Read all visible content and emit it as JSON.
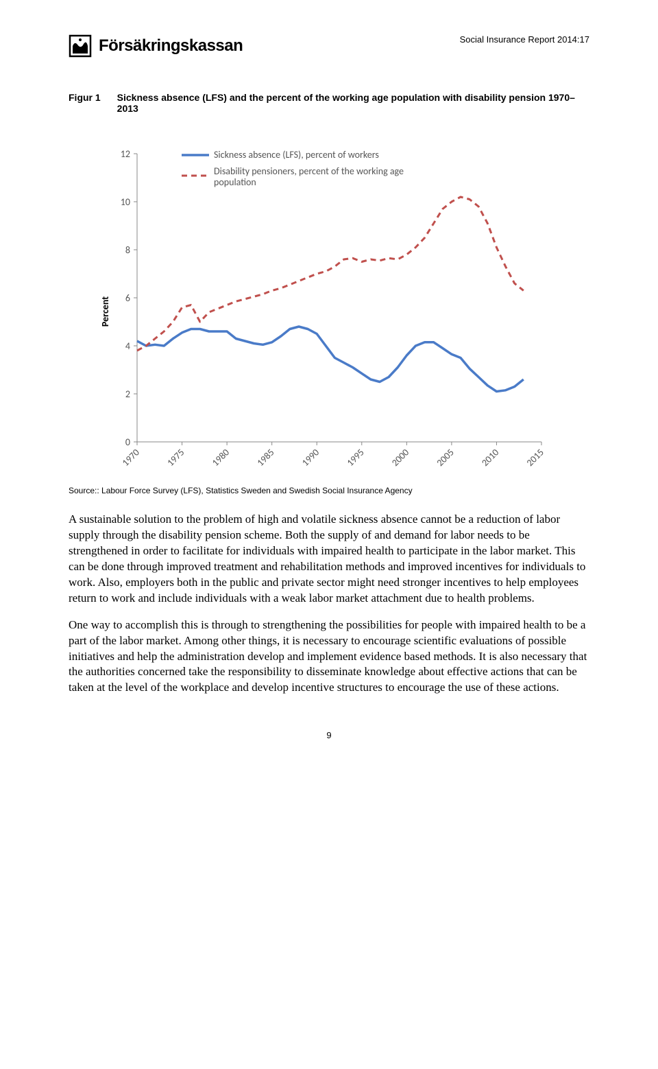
{
  "header": {
    "brand": "Försäkringskassan",
    "report_tag": "Social Insurance Report 2014:17"
  },
  "figure": {
    "label": "Figur 1",
    "title": "Sickness absence (LFS) and the percent of the working age population with disability pension 1970–2013",
    "source": "Source:: Labour Force Survey (LFS), Statistics Sweden and Swedish Social Insurance Agency",
    "chart": {
      "type": "line",
      "ylabel": "Percent",
      "ylim": [
        0,
        12
      ],
      "ytick_step": 2,
      "xlim": [
        1970,
        2015
      ],
      "xtick_step": 5,
      "background_color": "#ffffff",
      "axis_color": "#898989",
      "tick_font_size": 14,
      "label_font_size": 14,
      "legend": [
        {
          "label": "Sickness absence (LFS), percent of workers",
          "color": "#4a7bc8",
          "dash": false,
          "line_width": 3.5
        },
        {
          "label": "Disability pensioners, percent of the working age population",
          "color": "#c0504d",
          "dash": true,
          "line_width": 3
        }
      ],
      "series_sickness": {
        "color": "#4a7bc8",
        "dash": false,
        "points": [
          [
            1970,
            4.2
          ],
          [
            1971,
            4.0
          ],
          [
            1972,
            4.05
          ],
          [
            1973,
            4.0
          ],
          [
            1974,
            4.3
          ],
          [
            1975,
            4.55
          ],
          [
            1976,
            4.7
          ],
          [
            1977,
            4.7
          ],
          [
            1978,
            4.6
          ],
          [
            1979,
            4.6
          ],
          [
            1980,
            4.6
          ],
          [
            1981,
            4.3
          ],
          [
            1982,
            4.2
          ],
          [
            1983,
            4.1
          ],
          [
            1984,
            4.05
          ],
          [
            1985,
            4.15
          ],
          [
            1986,
            4.4
          ],
          [
            1987,
            4.7
          ],
          [
            1988,
            4.8
          ],
          [
            1989,
            4.7
          ],
          [
            1990,
            4.5
          ],
          [
            1991,
            4.0
          ],
          [
            1992,
            3.5
          ],
          [
            1993,
            3.3
          ],
          [
            1994,
            3.1
          ],
          [
            1995,
            2.85
          ],
          [
            1996,
            2.6
          ],
          [
            1997,
            2.5
          ],
          [
            1998,
            2.7
          ],
          [
            1999,
            3.1
          ],
          [
            2000,
            3.6
          ],
          [
            2001,
            4.0
          ],
          [
            2002,
            4.15
          ],
          [
            2003,
            4.15
          ],
          [
            2004,
            3.9
          ],
          [
            2005,
            3.65
          ],
          [
            2006,
            3.5
          ],
          [
            2007,
            3.05
          ],
          [
            2008,
            2.7
          ],
          [
            2009,
            2.35
          ],
          [
            2010,
            2.1
          ],
          [
            2011,
            2.15
          ],
          [
            2012,
            2.3
          ],
          [
            2013,
            2.6
          ]
        ]
      },
      "series_disability": {
        "color": "#c0504d",
        "dash": true,
        "points": [
          [
            1970,
            3.8
          ],
          [
            1971,
            4.0
          ],
          [
            1972,
            4.3
          ],
          [
            1973,
            4.6
          ],
          [
            1974,
            5.0
          ],
          [
            1975,
            5.6
          ],
          [
            1976,
            5.7
          ],
          [
            1977,
            5.0
          ],
          [
            1978,
            5.4
          ],
          [
            1979,
            5.55
          ],
          [
            1980,
            5.7
          ],
          [
            1981,
            5.85
          ],
          [
            1982,
            5.95
          ],
          [
            1983,
            6.05
          ],
          [
            1984,
            6.15
          ],
          [
            1985,
            6.3
          ],
          [
            1986,
            6.4
          ],
          [
            1987,
            6.55
          ],
          [
            1988,
            6.7
          ],
          [
            1989,
            6.85
          ],
          [
            1990,
            7.0
          ],
          [
            1991,
            7.1
          ],
          [
            1992,
            7.3
          ],
          [
            1993,
            7.6
          ],
          [
            1994,
            7.65
          ],
          [
            1995,
            7.5
          ],
          [
            1996,
            7.6
          ],
          [
            1997,
            7.55
          ],
          [
            1998,
            7.65
          ],
          [
            1999,
            7.6
          ],
          [
            2000,
            7.8
          ],
          [
            2001,
            8.1
          ],
          [
            2002,
            8.5
          ],
          [
            2003,
            9.1
          ],
          [
            2004,
            9.7
          ],
          [
            2005,
            10.0
          ],
          [
            2006,
            10.2
          ],
          [
            2007,
            10.1
          ],
          [
            2008,
            9.8
          ],
          [
            2009,
            9.1
          ],
          [
            2010,
            8.1
          ],
          [
            2011,
            7.3
          ],
          [
            2012,
            6.6
          ],
          [
            2013,
            6.3
          ]
        ]
      }
    }
  },
  "body": {
    "p1": "A sustainable solution to the problem of high and volatile sickness absence cannot be a reduction of labor supply through the disability pension scheme. Both the supply of and demand for labor needs to be strengthened in order to facilitate for individuals with impaired health to participate in the labor market. This can be done through improved treatment and rehabilitation methods and improved incentives for individuals to work. Also, employers both in the public and private sector might need stronger incentives to help employees return to work and include individuals with a weak labor market attachment due to health problems.",
    "p2": "One way to accomplish this is through to strengthening the possibilities for people with impaired health to be a part of the labor market. Among other things, it is necessary to encourage scientific evaluations of possible initiatives and help the administration develop and implement evidence based methods. It is also necessary that the authorities concerned take the responsibility to disseminate knowledge about effective actions that can be taken at the level of the workplace and develop incentive structures to encourage the use of these actions."
  },
  "page_number": "9"
}
